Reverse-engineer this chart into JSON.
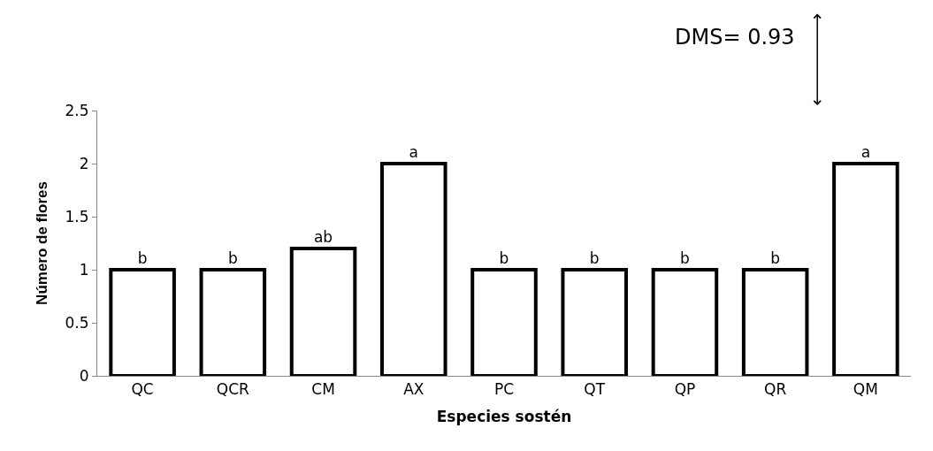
{
  "chart_data": {
    "type": "bar",
    "xlabel": "Especies sostén",
    "ylabel": "Número de flores",
    "categories": [
      "QC",
      "QCR",
      "CM",
      "AX",
      "PC",
      "QT",
      "QP",
      "QR",
      "QM"
    ],
    "values": [
      1,
      1,
      1.2,
      2,
      1,
      1,
      1,
      1,
      2
    ],
    "value_labels": [
      "b",
      "b",
      "ab",
      "a",
      "b",
      "b",
      "b",
      "b",
      "a"
    ],
    "color": "#ffffff",
    "ylim": [
      0,
      2.5
    ],
    "yticks": [
      0,
      0.5,
      1,
      1.5,
      2,
      2.5
    ],
    "annotations": [
      "DMS= 0.93"
    ]
  }
}
